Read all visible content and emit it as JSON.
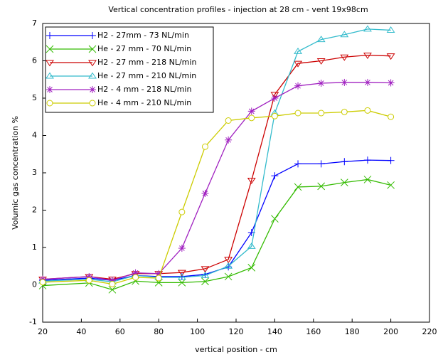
{
  "chart_data": {
    "type": "line",
    "title": "Vertical concentration profiles - injection at 28 cm - vent 19x98cm",
    "x_label": "vertical position - cm",
    "y_label": "Volumic gas concentration %",
    "x": [
      20,
      44,
      56,
      68,
      80,
      92,
      104,
      116,
      128,
      140,
      152,
      164,
      176,
      188,
      200
    ],
    "xlim": [
      20,
      220
    ],
    "xticks": [
      20,
      40,
      60,
      80,
      100,
      120,
      140,
      160,
      180,
      200,
      220
    ],
    "ylim": [
      -1,
      7
    ],
    "yticks": [
      -1,
      0,
      1,
      2,
      3,
      4,
      5,
      6,
      7
    ],
    "legend": "upper left",
    "series": [
      {
        "name": "H2 - 27mm - 73 NL/min",
        "color": "#0000ff",
        "marker": "plus",
        "values": [
          0.12,
          0.18,
          0.12,
          0.25,
          0.22,
          0.22,
          0.28,
          0.48,
          1.4,
          2.92,
          3.24,
          3.24,
          3.3,
          3.34,
          3.33
        ]
      },
      {
        "name": "He - 27 mm - 70 NL/min",
        "color": "#33bb00",
        "marker": "cross",
        "values": [
          -0.02,
          0.05,
          -0.13,
          0.1,
          0.06,
          0.06,
          0.09,
          0.22,
          0.46,
          1.77,
          2.62,
          2.64,
          2.74,
          2.82,
          2.67
        ]
      },
      {
        "name": "H2 - 27 mm - 218 NL/min",
        "color": "#cc0000",
        "marker": "tridown",
        "values": [
          0.15,
          0.22,
          0.15,
          0.3,
          0.3,
          0.33,
          0.43,
          0.68,
          2.8,
          5.1,
          5.93,
          6.0,
          6.1,
          6.15,
          6.13
        ]
      },
      {
        "name": "He - 27 mm - 210 NL/min",
        "color": "#33bbcc",
        "marker": "triup",
        "values": [
          0.1,
          0.15,
          0.08,
          0.25,
          0.2,
          0.2,
          0.25,
          0.5,
          1.03,
          4.6,
          6.25,
          6.57,
          6.7,
          6.85,
          6.82
        ]
      },
      {
        "name": "H2 - 4 mm - 218 NL/min",
        "color": "#a020c0",
        "marker": "star",
        "values": [
          0.15,
          0.22,
          0.12,
          0.32,
          0.3,
          0.98,
          2.45,
          3.88,
          4.65,
          5.0,
          5.33,
          5.4,
          5.42,
          5.42,
          5.41
        ]
      },
      {
        "name": "He - 4 mm - 210 NL/min",
        "color": "#cccc00",
        "marker": "circle",
        "values": [
          0.07,
          0.12,
          0.02,
          0.2,
          0.18,
          1.95,
          3.7,
          4.4,
          4.47,
          4.52,
          4.6,
          4.6,
          4.63,
          4.67,
          4.5
        ]
      }
    ]
  }
}
